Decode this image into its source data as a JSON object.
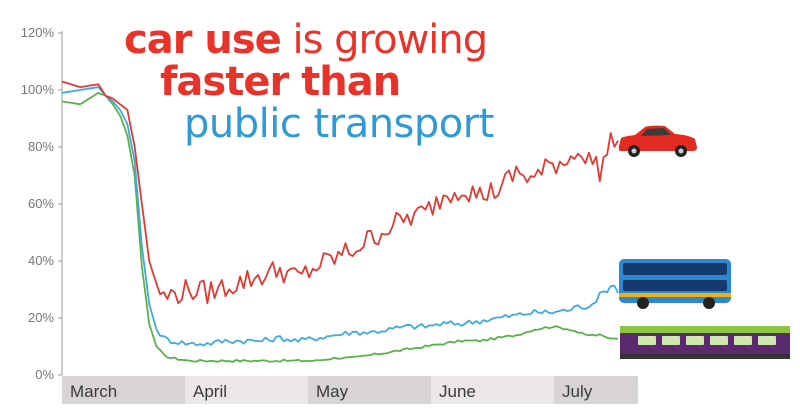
{
  "title": {
    "part1_bold": "car use",
    "part1_light": " is growing",
    "part2": "faster than",
    "part3": "public transport"
  },
  "colors": {
    "car": "#e03a33",
    "bus": "#3fa9e0",
    "rail": "#5ab14a",
    "axis_band": "#d9d4d4",
    "title_red": "#e8332a",
    "title_blue": "#2f9ad8"
  },
  "chart_data": {
    "type": "line",
    "xlabel": "",
    "ylabel": "",
    "ylim": [
      0,
      120
    ],
    "yticks": [
      0,
      20,
      40,
      60,
      80,
      100,
      120
    ],
    "ytick_labels": [
      "0%",
      "20%",
      "40%",
      "60%",
      "80%",
      "100%",
      "120%"
    ],
    "month_labels": [
      "March",
      "April",
      "May",
      "June",
      "July"
    ],
    "legend": "none",
    "grid": false,
    "x_days": [
      0,
      5,
      10,
      12,
      14,
      16,
      18,
      20,
      22,
      24,
      26,
      28,
      30,
      35,
      40,
      45,
      50,
      55,
      60,
      65,
      70,
      75,
      80,
      85,
      90,
      95,
      100,
      105,
      110,
      115,
      120,
      125,
      130,
      135,
      140,
      142,
      144,
      146,
      148,
      150,
      152,
      153
    ],
    "series": [
      {
        "key": "car",
        "icon": "car-icon",
        "values": [
          103,
          101,
          102,
          98,
          97,
          95,
          93,
          80,
          60,
          40,
          32,
          27,
          28,
          30,
          29,
          31,
          33,
          35,
          37,
          34,
          38,
          41,
          44,
          48,
          52,
          55,
          57,
          63,
          66,
          63,
          65,
          71,
          69,
          74,
          76,
          81,
          74,
          76,
          72,
          78,
          84,
          80
        ]
      },
      {
        "key": "bus",
        "icon": "bus-icon",
        "values": [
          99,
          100,
          101,
          98,
          96,
          93,
          88,
          75,
          45,
          25,
          16,
          13,
          12,
          11,
          11,
          12,
          12,
          12,
          13,
          12,
          13,
          14,
          15,
          15,
          16,
          17,
          17,
          18,
          18,
          19,
          20,
          21,
          22,
          22,
          23,
          24,
          24,
          25,
          28,
          30,
          32,
          29
        ]
      },
      {
        "key": "rail",
        "icon": "train-icon",
        "values": [
          96,
          95,
          99,
          98,
          95,
          91,
          84,
          70,
          38,
          18,
          10,
          7,
          6,
          5,
          5,
          5,
          5,
          5,
          5,
          5,
          5,
          6,
          6,
          7,
          8,
          9,
          10,
          11,
          12,
          12,
          13,
          14,
          16,
          17,
          16,
          15,
          14,
          14,
          14,
          13,
          13,
          13
        ]
      }
    ]
  }
}
